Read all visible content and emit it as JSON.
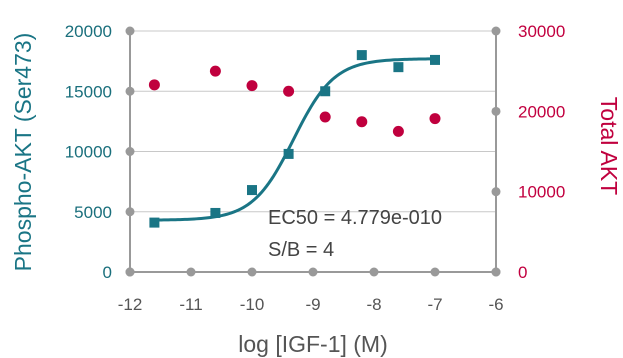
{
  "chart_data": {
    "type": "scatter",
    "title": "",
    "xlabel": "log [IGF-1] (M)",
    "ylabel_left": "Phospho-AKT (Ser473)",
    "ylabel_right": "Total AKT",
    "xlim": [
      -12,
      -6
    ],
    "ylim_left": [
      0,
      20000
    ],
    "ylim_right": [
      0,
      30000
    ],
    "x_ticks": [
      "-12",
      "-11",
      "-10",
      "-9",
      "-8",
      "-7",
      "-6"
    ],
    "y_ticks_left": [
      "0",
      "5000",
      "10000",
      "15000",
      "20000"
    ],
    "y_ticks_right": [
      "0",
      "10000",
      "20000",
      "30000"
    ],
    "grid": "horizontal",
    "colors": {
      "left": "#1a7585",
      "right": "#c0003e",
      "axis": "#999999"
    },
    "series": [
      {
        "name": "Phospho-AKT (Ser473)",
        "axis": "left",
        "marker": "square",
        "x": [
          -11.6,
          -10.6,
          -10.0,
          -9.4,
          -8.8,
          -8.2,
          -7.6,
          -7.0
        ],
        "y": [
          4100,
          4900,
          6800,
          9800,
          15000,
          18000,
          17000,
          17600
        ]
      },
      {
        "name": "Total AKT",
        "axis": "right",
        "marker": "circle",
        "x": [
          -11.6,
          -10.6,
          -10.0,
          -9.4,
          -8.8,
          -8.2,
          -7.6,
          -7.0
        ],
        "y": [
          23300,
          25000,
          23200,
          22500,
          19300,
          18700,
          17500,
          19100
        ]
      }
    ],
    "fit": {
      "series": "Phospho-AKT (Ser473)",
      "bottom": 4300,
      "top": 17700,
      "log_ec50": -9.32,
      "hill": 1.3
    },
    "annotations": [
      "EC50 = 4.779e-010",
      "S/B = 4"
    ]
  }
}
